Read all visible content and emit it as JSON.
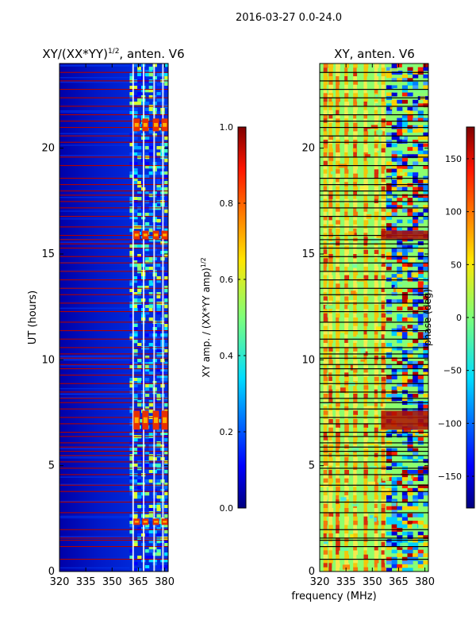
{
  "figure_title": "2016-03-27 0.0-24.0",
  "chart_data": [
    {
      "type": "heatmap",
      "title": "XY/(XX*YY)^{1/2}, anten. V6",
      "title_main": "XY/(XX*YY)",
      "title_sup": "1/2",
      "title_tail": ", anten. V6",
      "ylabel": "UT (hours)",
      "xlim": [
        320,
        382
      ],
      "ylim": [
        0,
        24
      ],
      "xticks": [
        320,
        335,
        350,
        365,
        380
      ],
      "yticks": [
        0,
        5,
        10,
        15,
        20
      ],
      "bright_channels_mhz": [
        362,
        368,
        374,
        379
      ],
      "bright_blocks_hours": [
        [
          6.7,
          7.6
        ],
        [
          15.7,
          16.1
        ],
        [
          20.8,
          21.4
        ],
        [
          2.2,
          2.5
        ]
      ],
      "colorbar": {
        "label": "XY amp. / (XX*YY amp)^{1/2}",
        "label_main": "XY amp. / (XX*YY amp)",
        "label_sup": "1/2",
        "min": 0.0,
        "max": 1.0,
        "ticks": [
          "0.0",
          "0.2",
          "0.4",
          "0.6",
          "0.8",
          "1.0"
        ],
        "tick_values": [
          0.0,
          0.2,
          0.4,
          0.6,
          0.8,
          1.0
        ]
      }
    },
    {
      "type": "heatmap",
      "title": "XY, anten. V6",
      "xlabel": "frequency (MHz)",
      "xlim": [
        320,
        382
      ],
      "ylim": [
        0,
        24
      ],
      "xticks": [
        320,
        335,
        350,
        365,
        380
      ],
      "yticks": [
        0,
        5,
        10,
        15,
        20
      ],
      "bright_blocks_hours": [
        [
          6.7,
          7.6
        ],
        [
          15.7,
          16.1
        ]
      ],
      "colorbar": {
        "label": "phase (deg)",
        "min": -180,
        "max": 180,
        "ticks": [
          "−150",
          "−100",
          "−50",
          "0",
          "50",
          "100",
          "150"
        ],
        "tick_values": [
          -150,
          -100,
          -50,
          0,
          50,
          100,
          150
        ]
      }
    }
  ],
  "flag_rows_hours": [
    0.6,
    1.2,
    1.5,
    1.6,
    2.0,
    2.8,
    3.3,
    3.8,
    4.1,
    4.6,
    4.9,
    5.2,
    5.5,
    5.7,
    5.9,
    6.1,
    6.4,
    6.6,
    7.0,
    7.3,
    7.7,
    8.0,
    8.2,
    8.5,
    8.9,
    9.3,
    9.6,
    9.8,
    10.1,
    10.3,
    10.6,
    11.0,
    11.4,
    11.8,
    12.3,
    12.7,
    13.1,
    13.4,
    13.8,
    14.2,
    14.6,
    14.9,
    15.3,
    15.5,
    15.7,
    15.9,
    16.3,
    16.8,
    17.2,
    17.5,
    17.8,
    18.0,
    18.3,
    18.6,
    19.2,
    19.6,
    20.3,
    20.6,
    21.0,
    21.3,
    21.6,
    22.0,
    22.4,
    22.8,
    23.2,
    23.6
  ]
}
